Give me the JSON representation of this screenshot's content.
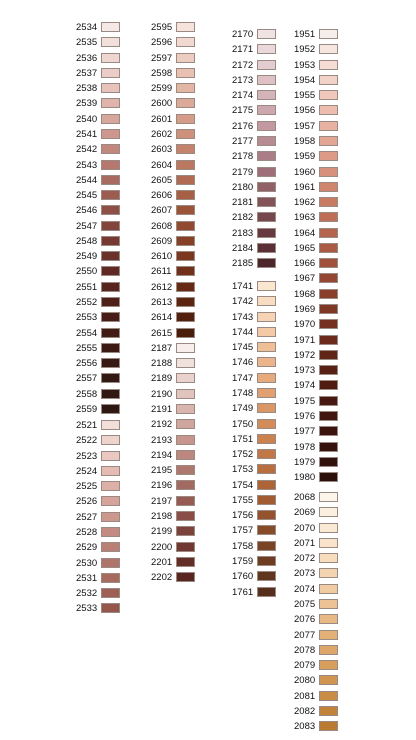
{
  "columns": [
    {
      "groups": [
        {
          "rows": [
            {
              "code": "2534",
              "color": "#f4e9e6"
            },
            {
              "code": "2535",
              "color": "#f2e0dc"
            },
            {
              "code": "2536",
              "color": "#efd6d1"
            },
            {
              "code": "2537",
              "color": "#ecccc6"
            },
            {
              "code": "2538",
              "color": "#e8c2bb"
            },
            {
              "code": "2539",
              "color": "#e0b4ab"
            },
            {
              "code": "2540",
              "color": "#d7a69d"
            },
            {
              "code": "2541",
              "color": "#cd978d"
            },
            {
              "code": "2542",
              "color": "#c2877d"
            },
            {
              "code": "2543",
              "color": "#b6786e"
            },
            {
              "code": "2544",
              "color": "#a96a60"
            },
            {
              "code": "2545",
              "color": "#9c5c52"
            },
            {
              "code": "2546",
              "color": "#8f4f46"
            },
            {
              "code": "2547",
              "color": "#83443c"
            },
            {
              "code": "2548",
              "color": "#773a33"
            },
            {
              "code": "2549",
              "color": "#6b312b"
            },
            {
              "code": "2550",
              "color": "#612923"
            },
            {
              "code": "2551",
              "color": "#57241e"
            },
            {
              "code": "2552",
              "color": "#4f2019"
            },
            {
              "code": "2553",
              "color": "#481d17"
            },
            {
              "code": "2554",
              "color": "#421b15"
            },
            {
              "code": "2555",
              "color": "#3c1a14"
            },
            {
              "code": "2556",
              "color": "#371a14"
            },
            {
              "code": "2557",
              "color": "#331914"
            },
            {
              "code": "2558",
              "color": "#301813"
            },
            {
              "code": "2559",
              "color": "#2c1712"
            }
          ]
        },
        {
          "rows": [
            {
              "code": "2521",
              "color": "#f3dfda"
            },
            {
              "code": "2522",
              "color": "#efd3cd"
            },
            {
              "code": "2523",
              "color": "#eac8c1"
            },
            {
              "code": "2524",
              "color": "#e4bcb4"
            },
            {
              "code": "2525",
              "color": "#ddb0a7"
            },
            {
              "code": "2526",
              "color": "#d5a39a"
            },
            {
              "code": "2527",
              "color": "#cc978d"
            },
            {
              "code": "2528",
              "color": "#c38b81"
            },
            {
              "code": "2529",
              "color": "#ba8075"
            },
            {
              "code": "2530",
              "color": "#b0756a"
            },
            {
              "code": "2531",
              "color": "#a76a5f"
            },
            {
              "code": "2532",
              "color": "#9e6055"
            },
            {
              "code": "2533",
              "color": "#95564b"
            }
          ]
        }
      ]
    },
    {
      "groups": [
        {
          "rows": [
            {
              "code": "2595",
              "color": "#f6e4dc"
            },
            {
              "code": "2596",
              "color": "#f2d9cf"
            },
            {
              "code": "2597",
              "color": "#edcdc1"
            },
            {
              "code": "2598",
              "color": "#e8c1b3"
            },
            {
              "code": "2599",
              "color": "#e2b5a5"
            },
            {
              "code": "2600",
              "color": "#dba997"
            },
            {
              "code": "2601",
              "color": "#d49c89"
            },
            {
              "code": "2602",
              "color": "#cc907b"
            },
            {
              "code": "2603",
              "color": "#c4836d"
            },
            {
              "code": "2604",
              "color": "#bb775f"
            },
            {
              "code": "2605",
              "color": "#b16b52"
            },
            {
              "code": "2606",
              "color": "#a75f45"
            },
            {
              "code": "2607",
              "color": "#9c5439"
            },
            {
              "code": "2608",
              "color": "#91492f"
            },
            {
              "code": "2609",
              "color": "#864026"
            },
            {
              "code": "2610",
              "color": "#7b381f"
            },
            {
              "code": "2611",
              "color": "#703019"
            },
            {
              "code": "2612",
              "color": "#662a14"
            },
            {
              "code": "2613",
              "color": "#5c2510"
            },
            {
              "code": "2614",
              "color": "#53200d"
            },
            {
              "code": "2615",
              "color": "#4a1c0a"
            },
            {
              "code": "2187",
              "color": "#f8efec"
            },
            {
              "code": "2188",
              "color": "#f1e1dd"
            },
            {
              "code": "2189",
              "color": "#ead3ce"
            },
            {
              "code": "2190",
              "color": "#e2c4be"
            },
            {
              "code": "2191",
              "color": "#d9b5ae"
            },
            {
              "code": "2192",
              "color": "#d0a59e"
            },
            {
              "code": "2193",
              "color": "#c6968e"
            },
            {
              "code": "2194",
              "color": "#bb877e"
            },
            {
              "code": "2195",
              "color": "#af786f"
            },
            {
              "code": "2196",
              "color": "#a36a61"
            },
            {
              "code": "2197",
              "color": "#965c53"
            },
            {
              "code": "2198",
              "color": "#894f46"
            },
            {
              "code": "2199",
              "color": "#7c433b"
            },
            {
              "code": "2200",
              "color": "#703831"
            },
            {
              "code": "2201",
              "color": "#642e28"
            },
            {
              "code": "2202",
              "color": "#582520"
            }
          ]
        }
      ]
    },
    {
      "groups": [
        {
          "rows": [
            {
              "code": "2170",
              "color": "#efe3e4"
            },
            {
              "code": "2171",
              "color": "#ead8da"
            },
            {
              "code": "2172",
              "color": "#e4cdd0"
            },
            {
              "code": "2173",
              "color": "#ddc1c5"
            },
            {
              "code": "2174",
              "color": "#d5b4b9"
            },
            {
              "code": "2175",
              "color": "#cca7ad"
            },
            {
              "code": "2176",
              "color": "#c299a0"
            },
            {
              "code": "2177",
              "color": "#b78b92"
            },
            {
              "code": "2178",
              "color": "#ab7d84"
            },
            {
              "code": "2179",
              "color": "#9e6f76"
            },
            {
              "code": "2180",
              "color": "#916168"
            },
            {
              "code": "2181",
              "color": "#83535a"
            },
            {
              "code": "2182",
              "color": "#75464d"
            },
            {
              "code": "2183",
              "color": "#673a40"
            },
            {
              "code": "2184",
              "color": "#5a2f35"
            },
            {
              "code": "2185",
              "color": "#4d262b"
            }
          ]
        },
        {
          "rows": [
            {
              "code": "1741",
              "color": "#fbe6cf"
            },
            {
              "code": "1742",
              "color": "#f9ddc2"
            },
            {
              "code": "1743",
              "color": "#f6d3b4"
            },
            {
              "code": "1744",
              "color": "#f3c9a6"
            },
            {
              "code": "1745",
              "color": "#efbf98"
            },
            {
              "code": "1746",
              "color": "#ebb48a"
            },
            {
              "code": "1747",
              "color": "#e6aa7c"
            },
            {
              "code": "1748",
              "color": "#e0a070"
            },
            {
              "code": "1749",
              "color": "#da9664"
            },
            {
              "code": "1750",
              "color": "#d38c59"
            },
            {
              "code": "1751",
              "color": "#cb824f"
            },
            {
              "code": "1752",
              "color": "#c27846"
            },
            {
              "code": "1753",
              "color": "#b86e3e"
            },
            {
              "code": "1754",
              "color": "#ad6537"
            },
            {
              "code": "1755",
              "color": "#a15c31"
            },
            {
              "code": "1756",
              "color": "#94532c"
            },
            {
              "code": "1757",
              "color": "#874b28"
            },
            {
              "code": "1758",
              "color": "#7a4324"
            },
            {
              "code": "1759",
              "color": "#6d3c21"
            },
            {
              "code": "1760",
              "color": "#61351e"
            },
            {
              "code": "1761",
              "color": "#552f1b"
            }
          ]
        }
      ]
    },
    {
      "groups": [
        {
          "rows": [
            {
              "code": "1951",
              "color": "#f7eee9"
            },
            {
              "code": "1952",
              "color": "#f6e6e0"
            },
            {
              "code": "1953",
              "color": "#f5dcd4"
            },
            {
              "code": "1954",
              "color": "#f3d2c8"
            },
            {
              "code": "1955",
              "color": "#f0c7bb"
            },
            {
              "code": "1956",
              "color": "#ecbcae"
            },
            {
              "code": "1957",
              "color": "#e8b1a1"
            },
            {
              "code": "1958",
              "color": "#e3a694"
            },
            {
              "code": "1959",
              "color": "#dd9b87"
            },
            {
              "code": "1960",
              "color": "#d7907b"
            },
            {
              "code": "1961",
              "color": "#d0856f"
            },
            {
              "code": "1962",
              "color": "#c87a63"
            },
            {
              "code": "1963",
              "color": "#bf6f58"
            },
            {
              "code": "1964",
              "color": "#b5644e"
            },
            {
              "code": "1965",
              "color": "#ab5a44"
            },
            {
              "code": "1966",
              "color": "#a0503b"
            },
            {
              "code": "1967",
              "color": "#954733"
            },
            {
              "code": "1968",
              "color": "#8a3f2c"
            },
            {
              "code": "1969",
              "color": "#7f3726"
            },
            {
              "code": "1970",
              "color": "#753021"
            },
            {
              "code": "1971",
              "color": "#6b2a1c"
            },
            {
              "code": "1972",
              "color": "#612518"
            },
            {
              "code": "1973",
              "color": "#582015"
            },
            {
              "code": "1974",
              "color": "#501c12"
            },
            {
              "code": "1975",
              "color": "#481910"
            },
            {
              "code": "1976",
              "color": "#41160e"
            },
            {
              "code": "1977",
              "color": "#3b140d"
            },
            {
              "code": "1978",
              "color": "#36120c"
            },
            {
              "code": "1979",
              "color": "#31110b"
            },
            {
              "code": "1980",
              "color": "#2c100a"
            }
          ]
        },
        {
          "rows": [
            {
              "code": "2068",
              "color": "#fcf5ea"
            },
            {
              "code": "2069",
              "color": "#fbf0e0"
            },
            {
              "code": "2070",
              "color": "#faead5"
            },
            {
              "code": "2071",
              "color": "#f9e3ca"
            },
            {
              "code": "2072",
              "color": "#f7dcbd"
            },
            {
              "code": "2073",
              "color": "#f4d4b0"
            },
            {
              "code": "2074",
              "color": "#f1cba2"
            },
            {
              "code": "2075",
              "color": "#edc294"
            },
            {
              "code": "2076",
              "color": "#e8b985"
            },
            {
              "code": "2077",
              "color": "#e3b077"
            },
            {
              "code": "2078",
              "color": "#dda769"
            },
            {
              "code": "2079",
              "color": "#d79e5c"
            },
            {
              "code": "2080",
              "color": "#d09550"
            },
            {
              "code": "2081",
              "color": "#c98c45"
            },
            {
              "code": "2082",
              "color": "#c1833a"
            },
            {
              "code": "2083",
              "color": "#b97a31"
            }
          ]
        }
      ]
    }
  ]
}
